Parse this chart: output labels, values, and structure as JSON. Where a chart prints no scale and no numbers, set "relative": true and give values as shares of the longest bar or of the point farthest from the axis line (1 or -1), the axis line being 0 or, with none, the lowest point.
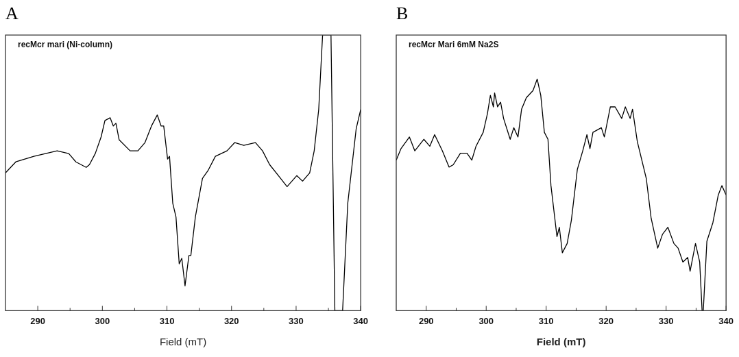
{
  "chart_data": [
    {
      "type": "line",
      "title": "A",
      "xlabel": "Field (mT)",
      "annotations": [
        "recMcr mari (Ni-column)"
      ],
      "relative": true,
      "marker": "none",
      "grid": false,
      "color": "#000000",
      "xlim": [
        285,
        340
      ],
      "xticks": [
        290,
        {
          "value": 295,
          "label": null
        },
        300,
        {
          "value": 305,
          "label": null
        },
        310,
        {
          "value": 315,
          "label": null
        },
        320,
        {
          "value": 325,
          "label": null
        },
        330,
        {
          "value": 335,
          "label": null
        },
        340
      ],
      "x": [
        285,
        286.6,
        289.4,
        293,
        294.8,
        295.9,
        297.5,
        298,
        298.9,
        299.8,
        300.4,
        301.2,
        301.7,
        302.1,
        302.6,
        304.3,
        305.5,
        306.6,
        307.6,
        308.5,
        309.1,
        309.5,
        310.1,
        310.4,
        310.9,
        311.4,
        311.9,
        312.3,
        312.8,
        313.4,
        313.7,
        314.4,
        315.5,
        316.4,
        317.5,
        319.3,
        320.5,
        321.9,
        323.7,
        324.8,
        325.9,
        327.6,
        328.6,
        330.1,
        331,
        332.1,
        332.8,
        333.5,
        334.1,
        335.4,
        336,
        337.2,
        338,
        339.3,
        340
      ],
      "values": [
        0.5,
        0.54,
        0.56,
        0.58,
        0.57,
        0.54,
        0.52,
        0.53,
        0.57,
        0.63,
        0.69,
        0.7,
        0.67,
        0.68,
        0.62,
        0.58,
        0.58,
        0.61,
        0.67,
        0.71,
        0.67,
        0.67,
        0.55,
        0.56,
        0.39,
        0.34,
        0.17,
        0.19,
        0.09,
        0.2,
        0.2,
        0.34,
        0.48,
        0.51,
        0.56,
        0.58,
        0.61,
        0.6,
        0.61,
        0.58,
        0.53,
        0.48,
        0.45,
        0.49,
        0.47,
        0.5,
        0.58,
        0.73,
        1,
        1,
        0,
        0,
        0.39,
        0.66,
        0.73
      ]
    },
    {
      "type": "line",
      "title": "B",
      "xlabel": "Field (mT)",
      "annotations": [
        "recMcr Mari 6mM Na2S"
      ],
      "relative": true,
      "marker": "none",
      "grid": false,
      "color": "#000000",
      "xlim": [
        285,
        340
      ],
      "xticks": [
        290,
        {
          "value": 295,
          "label": null
        },
        300,
        {
          "value": 305,
          "label": null
        },
        310,
        {
          "value": 315,
          "label": null
        },
        320,
        {
          "value": 325,
          "label": null
        },
        330,
        {
          "value": 335,
          "label": null
        },
        340
      ],
      "x": [
        285,
        285.8,
        287.2,
        288.1,
        289.6,
        290.6,
        291.4,
        292.7,
        293.8,
        294.5,
        295.7,
        296.8,
        297.6,
        298.3,
        299.5,
        300.2,
        300.7,
        301.2,
        301.4,
        301.9,
        302.4,
        302.9,
        304,
        304.6,
        305.3,
        305.9,
        306.7,
        307.8,
        308.5,
        309.1,
        309.7,
        310.3,
        310.8,
        311.8,
        312.2,
        312.7,
        313.5,
        314.2,
        315.2,
        316.1,
        316.8,
        317.3,
        317.8,
        319.2,
        319.7,
        320.7,
        321.5,
        322.6,
        323.2,
        324,
        324.4,
        325.2,
        326.7,
        327.5,
        328.6,
        329.4,
        330.3,
        331.3,
        332,
        332.8,
        333.6,
        334,
        334.9,
        335.6,
        336,
        336.2,
        336.8,
        337.8,
        338.7,
        339.3,
        340
      ],
      "values": [
        0.65,
        0.7,
        0.75,
        0.69,
        0.74,
        0.71,
        0.76,
        0.69,
        0.62,
        0.63,
        0.68,
        0.68,
        0.65,
        0.71,
        0.77,
        0.85,
        0.93,
        0.88,
        0.94,
        0.88,
        0.9,
        0.83,
        0.74,
        0.79,
        0.75,
        0.87,
        0.92,
        0.95,
        1,
        0.93,
        0.77,
        0.74,
        0.54,
        0.32,
        0.36,
        0.25,
        0.29,
        0.39,
        0.61,
        0.69,
        0.76,
        0.7,
        0.77,
        0.79,
        0.75,
        0.88,
        0.88,
        0.83,
        0.88,
        0.83,
        0.87,
        0.73,
        0.57,
        0.4,
        0.27,
        0.33,
        0.36,
        0.29,
        0.27,
        0.21,
        0.23,
        0.17,
        0.29,
        0.21,
        0,
        0,
        0.3,
        0.38,
        0.5,
        0.54,
        0.5
      ]
    }
  ]
}
